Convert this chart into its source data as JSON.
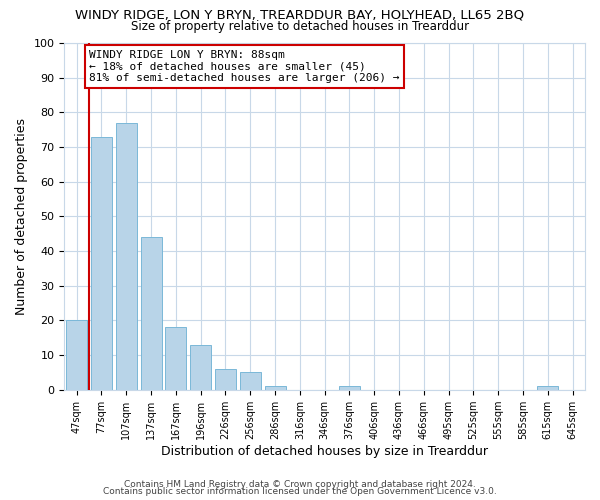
{
  "title": "WINDY RIDGE, LON Y BRYN, TREARDDUR BAY, HOLYHEAD, LL65 2BQ",
  "subtitle": "Size of property relative to detached houses in Trearddur",
  "xlabel": "Distribution of detached houses by size in Trearddur",
  "ylabel": "Number of detached properties",
  "bar_labels": [
    "47sqm",
    "77sqm",
    "107sqm",
    "137sqm",
    "167sqm",
    "196sqm",
    "226sqm",
    "256sqm",
    "286sqm",
    "316sqm",
    "346sqm",
    "376sqm",
    "406sqm",
    "436sqm",
    "466sqm",
    "495sqm",
    "525sqm",
    "555sqm",
    "585sqm",
    "615sqm",
    "645sqm"
  ],
  "bar_values": [
    20,
    73,
    77,
    44,
    18,
    13,
    6,
    5,
    1,
    0,
    0,
    1,
    0,
    0,
    0,
    0,
    0,
    0,
    0,
    1,
    0
  ],
  "bar_color": "#b8d4e8",
  "bar_edge_color": "#7ab8d8",
  "vline_x": 0.5,
  "vline_color": "#cc0000",
  "ylim": [
    0,
    100
  ],
  "yticks": [
    0,
    10,
    20,
    30,
    40,
    50,
    60,
    70,
    80,
    90,
    100
  ],
  "annotation_title": "WINDY RIDGE LON Y BRYN: 88sqm",
  "annotation_line1": "← 18% of detached houses are smaller (45)",
  "annotation_line2": "81% of semi-detached houses are larger (206) →",
  "annotation_box_color": "#ffffff",
  "annotation_box_edge": "#cc0000",
  "footer_line1": "Contains HM Land Registry data © Crown copyright and database right 2024.",
  "footer_line2": "Contains public sector information licensed under the Open Government Licence v3.0.",
  "background_color": "#ffffff",
  "grid_color": "#c8d8e8"
}
